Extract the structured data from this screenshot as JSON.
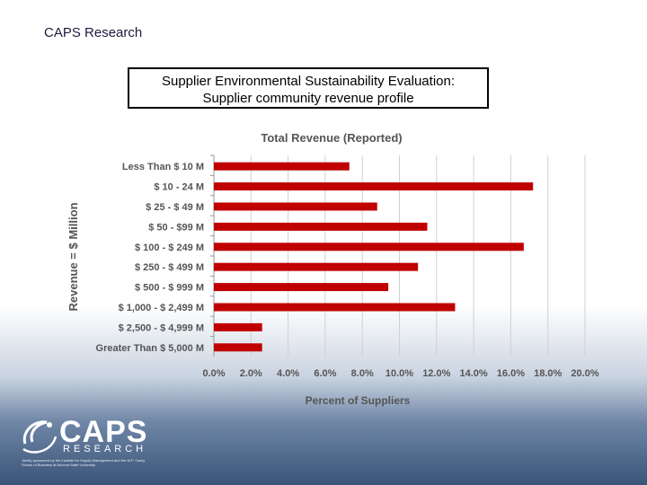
{
  "header": {
    "label": "CAPS Research"
  },
  "slide_title": {
    "line1": "Supplier Environmental Sustainability Evaluation:",
    "line2": "Supplier community revenue profile"
  },
  "colors": {
    "bar": "#c00000",
    "grid": "#d0d0d0",
    "text": "#555555"
  },
  "chart_data": {
    "type": "bar",
    "orientation": "horizontal",
    "title": "Total Revenue (Reported)",
    "xlabel": "Percent of Suppliers",
    "ylabel": "Revenue = $ Million",
    "categories": [
      "Less Than $ 10 M",
      "$ 10 - 24 M",
      "$ 25 - $ 49 M",
      "$ 50 - $99 M",
      "$ 100 - $ 249 M",
      "$ 250 - $ 499 M",
      "$ 500  - $ 999 M",
      "$ 1,000 - $ 2,499 M",
      "$ 2,500 - $ 4,999 M",
      "Greater Than $ 5,000 M"
    ],
    "values": [
      7.3,
      17.2,
      8.8,
      11.5,
      16.7,
      11.0,
      9.4,
      13.0,
      2.6,
      2.6
    ],
    "xlim": [
      0,
      20
    ],
    "xticks": [
      "0.0%",
      "2.0%",
      "4.0%",
      "6.0%",
      "8.0%",
      "10.0%",
      "12.0%",
      "14.0%",
      "16.0%",
      "18.0%",
      "20.0%"
    ],
    "grid": true
  },
  "logo": {
    "icon": "caps-swirl-icon",
    "name": "CAPS",
    "sub": "RESEARCH",
    "tagline": "Jointly sponsored by the Institute for Supply Management and the W.P. Carey School of Business at Arizona State University"
  }
}
